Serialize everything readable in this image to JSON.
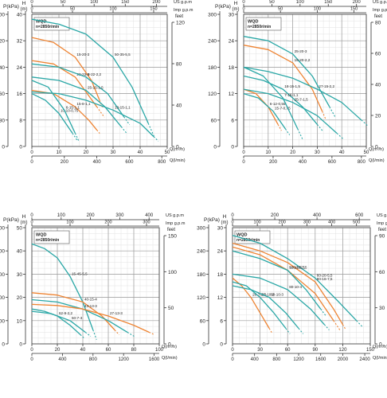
{
  "chart_data": [
    {
      "type": "line",
      "model_box": {
        "model": "WQD",
        "speed": "n=2850r/min"
      },
      "left_axis": {
        "p_title": "P(kPa)",
        "h_title": "H",
        "h_unit": "(m)",
        "p_ticks": [
          "400",
          "320",
          "240",
          "160",
          "80",
          "0"
        ],
        "h_ticks": [
          "40",
          "32",
          "24",
          "16",
          "8",
          "0"
        ]
      },
      "right_axis": {
        "ft_title": "feet",
        "ticks": [
          "120",
          "80",
          "40",
          "0"
        ]
      },
      "top_axis": {
        "usg_label": "US g.p.m",
        "imp_label": "Imp g.p.m",
        "usg_ticks": [
          "0",
          "50",
          "100",
          "150",
          "200"
        ],
        "imp_ticks": [
          "0",
          "50",
          "100",
          "150"
        ]
      },
      "bottom_axis": {
        "q_m3_label": "Q(m³/h)",
        "q_lmin_label": "Q(l/min)",
        "q_m3_ticks": [
          "0",
          "10",
          "20",
          "30",
          "40",
          "50"
        ],
        "q_lmin_ticks": [
          "0",
          "200",
          "400",
          "600",
          "800"
        ]
      },
      "xlim": [
        0,
        50
      ],
      "ylim": [
        0,
        40
      ],
      "series": [
        {
          "name": "50-35-5,5",
          "color": "#2aa7a6",
          "x": [
            0,
            10,
            20,
            30,
            37,
            43
          ],
          "y": [
            38.5,
            37,
            34,
            27,
            18,
            7
          ]
        },
        {
          "name": "15-20-3",
          "color": "#ee8433",
          "x": [
            0,
            8,
            16,
            22,
            25
          ],
          "y": [
            33,
            31.5,
            27,
            20,
            14
          ]
        },
        {
          "name": "20-22-3",
          "color": "#ee8433",
          "x": [
            0,
            8,
            16,
            24
          ],
          "y": [
            26,
            25,
            21,
            12
          ]
        },
        {
          "name": "8-22-2,2",
          "color": "#2aa7a6",
          "x": [
            0,
            10,
            20,
            28,
            34
          ],
          "y": [
            25,
            24,
            21,
            16,
            9
          ]
        },
        {
          "name": "25-15-1,5",
          "color": "#2aa7a6",
          "x": [
            0,
            10,
            20,
            27,
            33
          ],
          "y": [
            21,
            20,
            17,
            12,
            6
          ]
        },
        {
          "name": "15-8-1,1",
          "color": "#ee8433",
          "x": [
            0,
            8,
            16,
            21,
            24
          ],
          "y": [
            17,
            16,
            12,
            8,
            5
          ]
        },
        {
          "name": "10-10-0,75",
          "color": "#2aa7a6",
          "x": [
            0,
            5,
            10,
            15
          ],
          "y": [
            16,
            14,
            10,
            4
          ]
        },
        {
          "name": "6-15-1,1",
          "color": "#2aa7a6",
          "x": [
            0,
            6,
            12,
            16
          ],
          "y": [
            20,
            18,
            11,
            4
          ]
        },
        {
          "name": "13-15-1,1",
          "color": "#2aa7a6",
          "x": [
            0,
            10,
            20,
            30,
            40,
            45
          ],
          "y": [
            16.5,
            16,
            14,
            11,
            7,
            3
          ]
        }
      ]
    },
    {
      "type": "line",
      "model_box": {
        "model": "WQD",
        "speed": "n=2850r/min"
      },
      "left_axis": {
        "p_title": "P(kPa)",
        "h_title": "H",
        "h_unit": "(m)",
        "p_ticks": [
          "300",
          "240",
          "180",
          "120",
          "60",
          "0"
        ],
        "h_ticks": [
          "30",
          "24",
          "18",
          "12",
          "6",
          "0"
        ]
      },
      "right_axis": {
        "ft_title": "feet",
        "ticks": [
          "80",
          "60",
          "40",
          "20",
          "0"
        ]
      },
      "top_axis": {
        "usg_label": "US g.p.m",
        "imp_label": "Imp g.p.m",
        "usg_ticks": [
          "0",
          "50",
          "100",
          "150",
          "200"
        ],
        "imp_ticks": [
          "0",
          "50",
          "100",
          "150"
        ]
      },
      "bottom_axis": {
        "q_m3_label": "Q(m³/h)",
        "q_lmin_label": "Q(l/min)",
        "q_m3_ticks": [
          "0",
          "10",
          "20",
          "30",
          "40",
          "50"
        ],
        "q_lmin_ticks": [
          "0",
          "200",
          "400",
          "600",
          "800"
        ]
      },
      "xlim": [
        0,
        50
      ],
      "ylim": [
        0,
        30
      ],
      "series": [
        {
          "name": "25-20-3",
          "color": "#2aa7a6",
          "x": [
            0,
            10,
            20,
            28,
            35
          ],
          "y": [
            25,
            24,
            21,
            16,
            9
          ]
        },
        {
          "name": "15-20-2,2",
          "color": "#ee8433",
          "x": [
            0,
            10,
            20,
            28,
            32
          ],
          "y": [
            23,
            22,
            19,
            13,
            8
          ]
        },
        {
          "name": "27-15-2,2",
          "color": "#2aa7a6",
          "x": [
            0,
            10,
            20,
            30,
            40,
            48
          ],
          "y": [
            18,
            17,
            15.5,
            13,
            10,
            6
          ]
        },
        {
          "name": "18-15-1,5",
          "color": "#2aa7a6",
          "x": [
            0,
            8,
            16,
            24,
            30
          ],
          "y": [
            16,
            15,
            13,
            9,
            5
          ]
        },
        {
          "name": "6-12-0,55",
          "color": "#ee8433",
          "x": [
            0,
            5,
            10,
            14
          ],
          "y": [
            13,
            12,
            9,
            5
          ]
        },
        {
          "name": "15-7-0,75",
          "color": "#2aa7a6",
          "x": [
            0,
            6,
            12,
            17
          ],
          "y": [
            12,
            11,
            8,
            4
          ]
        },
        {
          "name": "7-15-1,1",
          "color": "#2aa7a6",
          "x": [
            0,
            8,
            16,
            22
          ],
          "y": [
            18,
            16,
            11,
            4
          ]
        },
        {
          "name": "25-7-1,5",
          "color": "#2aa7a6",
          "x": [
            0,
            10,
            20,
            30,
            38
          ],
          "y": [
            13,
            12,
            10,
            7,
            3
          ]
        }
      ]
    },
    {
      "type": "line",
      "model_box": {
        "model": "WQD",
        "speed": "n=2850r/min"
      },
      "left_axis": {
        "p_title": "P(kPa)",
        "h_title": "H",
        "h_unit": "(m)",
        "p_ticks": [
          "500",
          "400",
          "300",
          "200",
          "100",
          "0"
        ],
        "h_ticks": [
          "50",
          "40",
          "30",
          "20",
          "10",
          "0"
        ]
      },
      "right_axis": {
        "ft_title": "feet",
        "ticks": [
          "150",
          "100",
          "50",
          "0"
        ]
      },
      "top_axis": {
        "usg_label": "US g.p.m",
        "imp_label": "Imp g.p.m",
        "usg_ticks": [
          "0",
          "100",
          "200",
          "300",
          "400"
        ],
        "imp_ticks": [
          "0",
          "100",
          "200",
          "300"
        ]
      },
      "bottom_axis": {
        "q_m3_label": "Q(m³/h)",
        "q_lmin_label": "Q(l/min)",
        "q_m3_ticks": [
          "0",
          "20",
          "40",
          "60",
          "80",
          "100"
        ],
        "q_lmin_ticks": [
          "0",
          "400",
          "800",
          "1200",
          "1600"
        ]
      },
      "xlim": [
        0,
        100
      ],
      "ylim": [
        0,
        50
      ],
      "series": [
        {
          "name": "15-45-5,5",
          "color": "#2aa7a6",
          "x": [
            0,
            10,
            20,
            30,
            40,
            48
          ],
          "y": [
            43,
            41,
            37,
            29,
            18,
            6
          ]
        },
        {
          "name": "40-15-4",
          "color": "#ee8433",
          "x": [
            0,
            20,
            40,
            55,
            65
          ],
          "y": [
            22,
            21,
            18,
            12,
            6
          ]
        },
        {
          "name": "43-13-3",
          "color": "#2aa7a6",
          "x": [
            0,
            20,
            40,
            60,
            75
          ],
          "y": [
            19,
            18,
            15,
            10,
            5
          ]
        },
        {
          "name": "27-13-3",
          "color": "#ee8433",
          "x": [
            0,
            20,
            40,
            60,
            80,
            92
          ],
          "y": [
            17,
            16.5,
            15,
            12,
            8,
            5
          ]
        },
        {
          "name": "50-7-3",
          "color": "#2aa7a6",
          "x": [
            0,
            15,
            30,
            42
          ],
          "y": [
            14,
            13,
            10,
            5
          ]
        },
        {
          "name": "62-9-2,2",
          "color": "#2aa7a6",
          "x": [
            0,
            10,
            20,
            30,
            38
          ],
          "y": [
            15,
            14,
            12,
            8,
            4
          ]
        }
      ]
    },
    {
      "type": "line",
      "model_box": {
        "model": "WQD",
        "speed": "n=2850r/min"
      },
      "left_axis": {
        "p_title": "P(kPa)",
        "h_title": "H",
        "h_unit": "(m)",
        "p_ticks": [
          "300",
          "240",
          "180",
          "120",
          "60",
          "0"
        ],
        "h_ticks": [
          "30",
          "24",
          "18",
          "12",
          "6",
          "0"
        ]
      },
      "right_axis": {
        "ft_title": "feet",
        "ticks": [
          "90",
          "60",
          "30",
          "0"
        ]
      },
      "top_axis": {
        "usg_label": "US g.p.m",
        "imp_label": "Imp g.p.m",
        "usg_ticks": [
          "0",
          "200",
          "400",
          "600"
        ],
        "imp_ticks": [
          "0",
          "100",
          "200",
          "300",
          "400",
          "500"
        ]
      },
      "bottom_axis": {
        "q_m3_label": "Q(m³/h)",
        "q_lmin_label": "Q(l/min)",
        "q_m3_ticks": [
          "0",
          "30",
          "60",
          "90",
          "120",
          "150"
        ],
        "q_lmin_ticks": [
          "0",
          "400",
          "800",
          "1200",
          "1600",
          "2000",
          "2400"
        ]
      },
      "xlim": [
        0,
        150
      ],
      "ylim": [
        0,
        30
      ],
      "series": [
        {
          "name": "60-20-5,5",
          "color": "#2aa7a6",
          "x": [
            0,
            30,
            60,
            90,
            115,
            135
          ],
          "y": [
            28,
            26,
            22,
            17,
            11,
            6
          ]
        },
        {
          "name": "80-18-7,5",
          "color": "#ee8433",
          "x": [
            0,
            30,
            60,
            90,
            110,
            120
          ],
          "y": [
            26,
            24,
            21,
            16,
            9,
            5
          ]
        },
        {
          "name": "100-15-7,5",
          "color": "#ee8433",
          "x": [
            0,
            30,
            60,
            90,
            110
          ],
          "y": [
            25,
            23,
            19,
            13,
            6
          ]
        },
        {
          "name": "50-15-5,5",
          "color": "#2aa7a6",
          "x": [
            0,
            30,
            60,
            80,
            96
          ],
          "y": [
            24,
            22,
            19,
            14,
            9
          ]
        },
        {
          "name": "80-10-4",
          "color": "#2aa7a6",
          "x": [
            0,
            30,
            60,
            85,
            100
          ],
          "y": [
            18,
            17,
            14,
            9,
            5
          ]
        },
        {
          "name": "26-7-2,2",
          "color": "#ee8433",
          "x": [
            0,
            10,
            20,
            30,
            40
          ],
          "y": [
            17,
            15,
            12,
            8,
            4
          ]
        },
        {
          "name": "25-10-2",
          "color": "#2aa7a6",
          "x": [
            0,
            15,
            30,
            45,
            58
          ],
          "y": [
            16,
            15,
            12,
            8,
            4
          ]
        },
        {
          "name": "50-10-3",
          "color": "#2aa7a6",
          "x": [
            0,
            20,
            40,
            58,
            72
          ],
          "y": [
            15,
            14,
            12,
            8,
            4
          ]
        }
      ]
    }
  ]
}
